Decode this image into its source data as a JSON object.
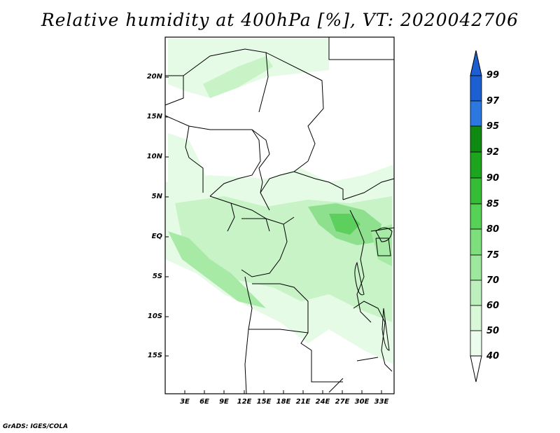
{
  "title": "Relative humidity at 400hPa [%], VT: 2020042706",
  "credit": "GrADS: IGES/COLA",
  "lat_labels": [
    "20N",
    "15N",
    "10N",
    "5N",
    "EQ",
    "5S",
    "10S",
    "15S"
  ],
  "lon_labels": [
    "3E",
    "6E",
    "9E",
    "12E",
    "15E",
    "18E",
    "21E",
    "24E",
    "27E",
    "30E",
    "33E"
  ],
  "colorbar": {
    "labels": [
      "99",
      "97",
      "95",
      "92",
      "90",
      "85",
      "80",
      "75",
      "70",
      "60",
      "50",
      "40"
    ],
    "colors": [
      "#1c5fd0",
      "#2a78e0",
      "#4a9cf0",
      "#0f8a10",
      "#1ea51e",
      "#35be35",
      "#55d255",
      "#7de07d",
      "#9de89d",
      "#bdf0bd",
      "#d8f8d8",
      "#ecfcec"
    ]
  }
}
